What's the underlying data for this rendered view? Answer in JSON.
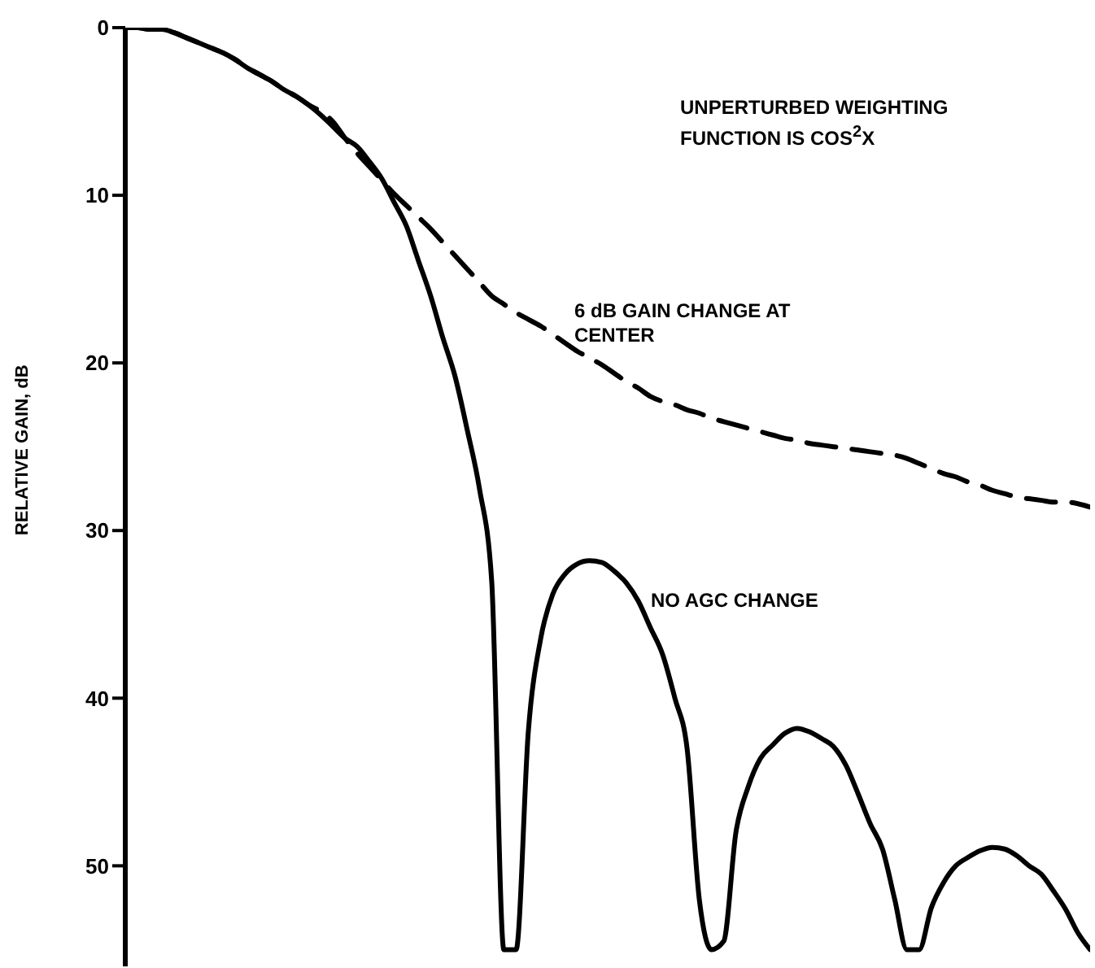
{
  "chart_data": {
    "type": "line",
    "categories": [
      null,
      null,
      null,
      null,
      null,
      null,
      null,
      null,
      null,
      null,
      null,
      null,
      null,
      null,
      null,
      null,
      null,
      null,
      null,
      null,
      null,
      null,
      null,
      null,
      null,
      null,
      null,
      null,
      null,
      null,
      null,
      null,
      null,
      null,
      null,
      null,
      null,
      null,
      null,
      null,
      null,
      null,
      null,
      null,
      null,
      null,
      null,
      null,
      null,
      null,
      null,
      null,
      null,
      null,
      null,
      null,
      null,
      null,
      null,
      null,
      null,
      null,
      null,
      null,
      null,
      null,
      null,
      null,
      null,
      null,
      null,
      null,
      null,
      null,
      null,
      null,
      null,
      null,
      null,
      null
    ],
    "ylabel": "RELATIVE GAIN, dB",
    "ylim": [
      56,
      0
    ],
    "yticks": [
      0,
      10,
      20,
      30,
      40,
      50
    ],
    "tick_labels": "y",
    "legend": false,
    "marker": "none",
    "annotations": [
      "UNPERTURBED WEIGHTING FUNCTION IS COS$^{2}$X"
    ],
    "series": [
      {
        "name": "6 dB GAIN CHANGE AT CENTER",
        "color": "#000000",
        "line_style": "dashed",
        "values": [
          0,
          0,
          0.1,
          0.1,
          0.3,
          0.6,
          0.9,
          1.2,
          1.5,
          1.9,
          2.4,
          2.8,
          3.2,
          3.7,
          4.1,
          4.6,
          5.0,
          5.6,
          6.6,
          7.5,
          8.3,
          9.1,
          9.9,
          10.6,
          11.3,
          12,
          12.8,
          13.6,
          14.4,
          15.2,
          16,
          16.5,
          17,
          17.4,
          17.8,
          18.3,
          18.8,
          19.3,
          19.7,
          20.1,
          20.6,
          21.1,
          21.5,
          22,
          22.3,
          22.5,
          22.8,
          23,
          23.3,
          23.5,
          23.7,
          23.9,
          24.1,
          24.3,
          24.5,
          24.6,
          24.8,
          24.9,
          25,
          25.1,
          25.2,
          25.3,
          25.4,
          25.5,
          25.7,
          26,
          26.3,
          26.6,
          26.8,
          27.1,
          27.3,
          27.6,
          27.8,
          28,
          28.1,
          28.2,
          28.3,
          28.3,
          28.4,
          28.6
        ]
      },
      {
        "name": "NO AGC CHANGE",
        "color": "#000000",
        "line_style": "solid",
        "values": [
          0,
          0,
          0.1,
          0.1,
          0.3,
          0.6,
          0.9,
          1.2,
          1.5,
          1.9,
          2.4,
          2.8,
          3.2,
          3.7,
          4.1,
          4.6,
          5.2,
          5.9,
          6.6,
          7.1,
          8,
          9,
          10.4,
          11.8,
          13.9,
          16,
          18.5,
          20.8,
          24,
          27.5,
          33,
          55,
          55,
          42,
          36.5,
          33.8,
          32.6,
          32,
          31.8,
          31.9,
          32.4,
          33.1,
          34.2,
          35.8,
          37.4,
          40,
          43,
          52,
          55,
          54.5,
          48,
          45.3,
          43.6,
          42.8,
          42.1,
          41.8,
          42,
          42.4,
          42.9,
          44,
          45.7,
          47.5,
          49,
          52,
          55,
          55,
          52.5,
          51,
          50,
          49.5,
          49.1,
          48.9,
          49,
          49.4,
          50,
          50.5,
          51.5,
          52.6,
          54,
          55
        ]
      }
    ]
  }
}
